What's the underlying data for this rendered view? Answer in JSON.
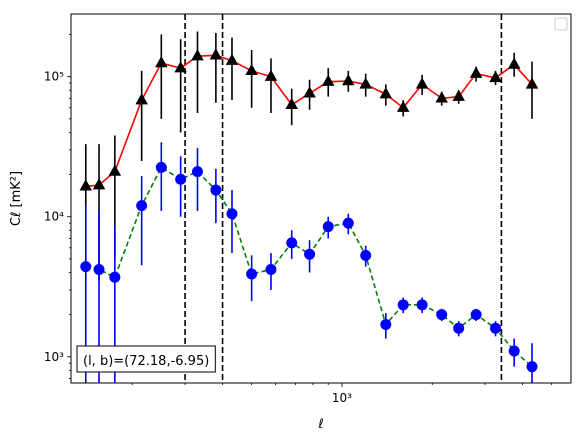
{
  "chart_data": {
    "type": "line",
    "xlabel": "ℓ",
    "ylabel": "Cℓ  [mK²]",
    "xscale": "log",
    "yscale": "log",
    "xlim": [
      125,
      5800
    ],
    "ylim": [
      650,
      280000
    ],
    "x_tick_labels": [
      {
        "value": 1000,
        "text": "10³"
      }
    ],
    "y_tick_labels": [
      {
        "value": 1000,
        "text": "10³"
      },
      {
        "value": 10000,
        "text": "10⁴"
      },
      {
        "value": 100000,
        "text": "10⁵"
      }
    ],
    "vlines": [
      300,
      400,
      3400
    ],
    "annotation": "(l, b)=(72.18,-6.95)",
    "legend_position": "top-right",
    "series": [
      {
        "color": "#ff0000",
        "marker_color": "#000000",
        "marker": "triangle",
        "linestyle": "solid",
        "points": [
          {
            "x": 140,
            "y": 16500,
            "lo": 3500,
            "hi": 33000
          },
          {
            "x": 155,
            "y": 16800,
            "lo": 3500,
            "hi": 33000
          },
          {
            "x": 175,
            "y": 21000,
            "lo": 5000,
            "hi": 38000
          },
          {
            "x": 215,
            "y": 68000,
            "lo": 25000,
            "hi": 110000
          },
          {
            "x": 250,
            "y": 125000,
            "lo": 50000,
            "hi": 200000
          },
          {
            "x": 290,
            "y": 115000,
            "lo": 40000,
            "hi": 185000
          },
          {
            "x": 330,
            "y": 140000,
            "lo": 55000,
            "hi": 210000
          },
          {
            "x": 380,
            "y": 142000,
            "lo": 65000,
            "hi": 205000
          },
          {
            "x": 430,
            "y": 130000,
            "lo": 68000,
            "hi": 190000
          },
          {
            "x": 500,
            "y": 110000,
            "lo": 60000,
            "hi": 155000
          },
          {
            "x": 580,
            "y": 100000,
            "lo": 55000,
            "hi": 135000
          },
          {
            "x": 680,
            "y": 63000,
            "lo": 45000,
            "hi": 82000
          },
          {
            "x": 780,
            "y": 76000,
            "lo": 58000,
            "hi": 95000
          },
          {
            "x": 900,
            "y": 92000,
            "lo": 72000,
            "hi": 115000
          },
          {
            "x": 1050,
            "y": 93000,
            "lo": 78000,
            "hi": 110000
          },
          {
            "x": 1200,
            "y": 88000,
            "lo": 72000,
            "hi": 105000
          },
          {
            "x": 1400,
            "y": 75000,
            "lo": 62000,
            "hi": 88000
          },
          {
            "x": 1600,
            "y": 60000,
            "lo": 52000,
            "hi": 68000
          },
          {
            "x": 1850,
            "y": 88000,
            "lo": 74000,
            "hi": 103000
          },
          {
            "x": 2150,
            "y": 70000,
            "lo": 62000,
            "hi": 78000
          },
          {
            "x": 2450,
            "y": 72000,
            "lo": 64000,
            "hi": 80000
          },
          {
            "x": 2800,
            "y": 105000,
            "lo": 92000,
            "hi": 118000
          },
          {
            "x": 3250,
            "y": 98000,
            "lo": 87000,
            "hi": 110000
          },
          {
            "x": 3750,
            "y": 122000,
            "lo": 100000,
            "hi": 148000
          },
          {
            "x": 4300,
            "y": 88000,
            "lo": 50000,
            "hi": 128000
          }
        ]
      },
      {
        "color": "#008000",
        "marker_color": "#0000ff",
        "marker": "circle",
        "linestyle": "dashed",
        "points": [
          {
            "x": 140,
            "y": 4400,
            "lo": 500,
            "hi": 12000
          },
          {
            "x": 155,
            "y": 4200,
            "lo": 500,
            "hi": 11000
          },
          {
            "x": 175,
            "y": 3700,
            "lo": 500,
            "hi": 8500
          },
          {
            "x": 215,
            "y": 12000,
            "lo": 4500,
            "hi": 19500
          },
          {
            "x": 250,
            "y": 22500,
            "lo": 11000,
            "hi": 34000
          },
          {
            "x": 290,
            "y": 18500,
            "lo": 10000,
            "hi": 27000
          },
          {
            "x": 330,
            "y": 21000,
            "lo": 11000,
            "hi": 31000
          },
          {
            "x": 380,
            "y": 15500,
            "lo": 9000,
            "hi": 22000
          },
          {
            "x": 430,
            "y": 10500,
            "lo": 5500,
            "hi": 15500
          },
          {
            "x": 500,
            "y": 3900,
            "lo": 2500,
            "hi": 5300
          },
          {
            "x": 580,
            "y": 4200,
            "lo": 3000,
            "hi": 5500
          },
          {
            "x": 680,
            "y": 6500,
            "lo": 5000,
            "hi": 8000
          },
          {
            "x": 780,
            "y": 5400,
            "lo": 4000,
            "hi": 6800
          },
          {
            "x": 900,
            "y": 8500,
            "lo": 7000,
            "hi": 10000
          },
          {
            "x": 1050,
            "y": 9000,
            "lo": 7500,
            "hi": 10500
          },
          {
            "x": 1200,
            "y": 5300,
            "lo": 4400,
            "hi": 6200
          },
          {
            "x": 1400,
            "y": 1700,
            "lo": 1350,
            "hi": 2050
          },
          {
            "x": 1600,
            "y": 2350,
            "lo": 2050,
            "hi": 2650
          },
          {
            "x": 1850,
            "y": 2350,
            "lo": 2050,
            "hi": 2650
          },
          {
            "x": 2150,
            "y": 2000,
            "lo": 1800,
            "hi": 2200
          },
          {
            "x": 2450,
            "y": 1600,
            "lo": 1400,
            "hi": 1800
          },
          {
            "x": 2800,
            "y": 2000,
            "lo": 1800,
            "hi": 2200
          },
          {
            "x": 3250,
            "y": 1600,
            "lo": 1400,
            "hi": 1800
          },
          {
            "x": 3750,
            "y": 1100,
            "lo": 850,
            "hi": 1350
          },
          {
            "x": 4300,
            "y": 850,
            "lo": 600,
            "hi": 1250
          }
        ]
      }
    ]
  }
}
